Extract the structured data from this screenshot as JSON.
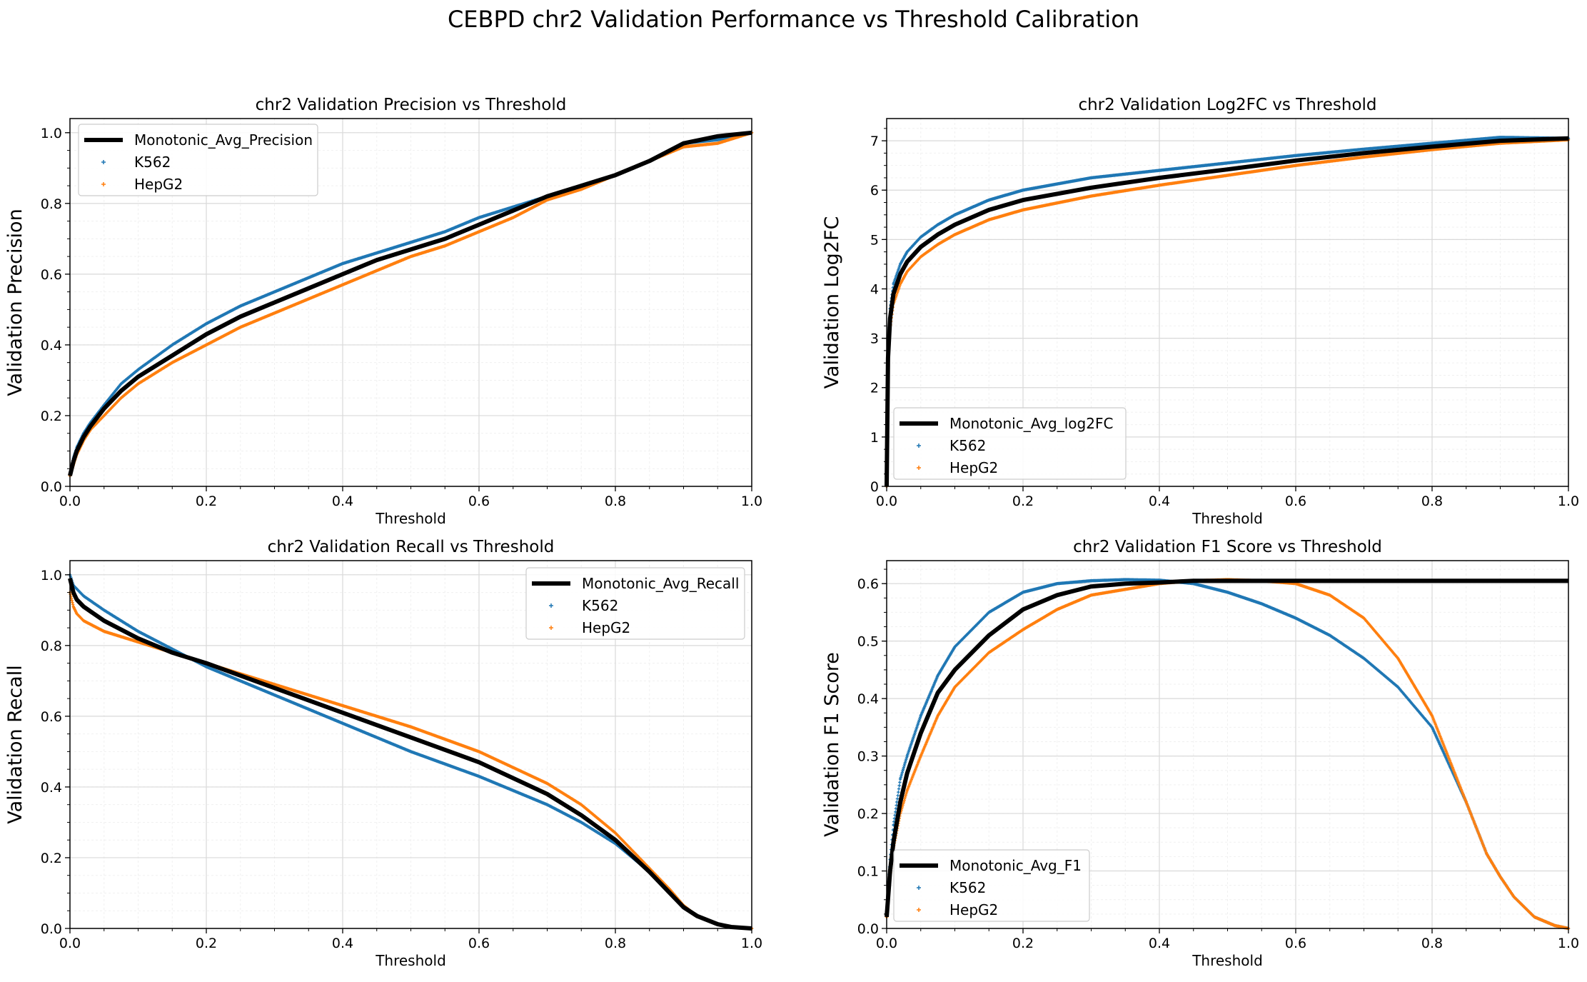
{
  "figure_title": "CEBPD chr2 Validation Performance vs Threshold Calibration",
  "colors": {
    "K562": "#1f77b4",
    "HepG2": "#ff7f0e",
    "avg": "#000000",
    "grid": "#d9d9d9"
  },
  "chart_data": [
    {
      "type": "scatter",
      "title": "chr2 Validation Precision vs Threshold",
      "xlabel": "Threshold",
      "ylabel": "Validation Precision",
      "xlim": [
        0,
        1
      ],
      "ylim": [
        0,
        1.04
      ],
      "xticks": [
        "0.0",
        "0.2",
        "0.4",
        "0.6",
        "0.8",
        "1.0"
      ],
      "yticks": [
        "0.0",
        "0.2",
        "0.4",
        "0.6",
        "0.8",
        "1.0"
      ],
      "ytick_values": [
        0,
        0.2,
        0.4,
        0.6,
        0.8,
        1.0
      ],
      "legend_position": "upper-left",
      "legend": [
        "Monotonic_Avg_Precision",
        "K562",
        "HepG2"
      ],
      "x": [
        0,
        0.005,
        0.01,
        0.02,
        0.03,
        0.05,
        0.075,
        0.1,
        0.15,
        0.2,
        0.25,
        0.3,
        0.35,
        0.4,
        0.45,
        0.5,
        0.55,
        0.6,
        0.65,
        0.7,
        0.75,
        0.8,
        0.85,
        0.9,
        0.95,
        1.0
      ],
      "series": [
        {
          "name": "Monotonic_Avg_Precision",
          "kind": "line",
          "values": [
            0.03,
            0.07,
            0.1,
            0.14,
            0.17,
            0.22,
            0.27,
            0.31,
            0.37,
            0.43,
            0.48,
            0.52,
            0.56,
            0.6,
            0.64,
            0.67,
            0.7,
            0.74,
            0.78,
            0.82,
            0.85,
            0.88,
            0.92,
            0.97,
            0.99,
            1.0
          ]
        },
        {
          "name": "K562",
          "kind": "scatter",
          "values": [
            0.03,
            0.08,
            0.11,
            0.15,
            0.18,
            0.23,
            0.29,
            0.33,
            0.4,
            0.46,
            0.51,
            0.55,
            0.59,
            0.63,
            0.66,
            0.69,
            0.72,
            0.76,
            0.79,
            0.82,
            0.85,
            0.88,
            0.92,
            0.97,
            0.98,
            1.0
          ]
        },
        {
          "name": "HepG2",
          "kind": "scatter",
          "values": [
            0.03,
            0.06,
            0.09,
            0.13,
            0.16,
            0.2,
            0.25,
            0.29,
            0.35,
            0.4,
            0.45,
            0.49,
            0.53,
            0.57,
            0.61,
            0.65,
            0.68,
            0.72,
            0.76,
            0.81,
            0.84,
            0.88,
            0.92,
            0.96,
            0.97,
            1.0
          ]
        }
      ]
    },
    {
      "type": "scatter",
      "title": "chr2 Validation Log2FC vs Threshold",
      "xlabel": "Threshold",
      "ylabel": "Validation Log2FC",
      "xlim": [
        0,
        1
      ],
      "ylim": [
        0,
        7.45
      ],
      "xticks": [
        "0.0",
        "0.2",
        "0.4",
        "0.6",
        "0.8",
        "1.0"
      ],
      "yticks": [
        "0",
        "1",
        "2",
        "3",
        "4",
        "5",
        "6",
        "7"
      ],
      "ytick_values": [
        0,
        1,
        2,
        3,
        4,
        5,
        6,
        7
      ],
      "legend_position": "lower-left",
      "legend": [
        "Monotonic_Avg_log2FC",
        "K562",
        "HepG2"
      ],
      "x": [
        0,
        0.002,
        0.005,
        0.01,
        0.02,
        0.03,
        0.05,
        0.075,
        0.1,
        0.15,
        0.2,
        0.3,
        0.4,
        0.5,
        0.6,
        0.7,
        0.8,
        0.9,
        1.0
      ],
      "series": [
        {
          "name": "Monotonic_Avg_log2FC",
          "kind": "line",
          "values": [
            0,
            2.6,
            3.4,
            3.9,
            4.3,
            4.55,
            4.85,
            5.1,
            5.3,
            5.6,
            5.8,
            6.05,
            6.25,
            6.42,
            6.6,
            6.75,
            6.88,
            7.0,
            7.05
          ]
        },
        {
          "name": "K562",
          "kind": "scatter",
          "values": [
            0,
            2.8,
            3.6,
            4.1,
            4.5,
            4.75,
            5.05,
            5.3,
            5.5,
            5.8,
            6.0,
            6.25,
            6.4,
            6.55,
            6.7,
            6.83,
            6.95,
            7.07,
            7.05
          ]
        },
        {
          "name": "HepG2",
          "kind": "scatter",
          "values": [
            0,
            2.5,
            3.2,
            3.7,
            4.1,
            4.35,
            4.65,
            4.9,
            5.1,
            5.4,
            5.6,
            5.88,
            6.1,
            6.3,
            6.5,
            6.67,
            6.82,
            6.95,
            7.02
          ]
        }
      ]
    },
    {
      "type": "scatter",
      "title": "chr2 Validation Recall vs Threshold",
      "xlabel": "",
      "ylabel": "Validation Recall",
      "xlim": [
        0,
        1
      ],
      "ylim": [
        0,
        1.04
      ],
      "xticks": [
        "0.0",
        "0.2",
        "0.4",
        "0.6",
        "0.8",
        "1.0"
      ],
      "yticks": [
        "0.0",
        "0.2",
        "0.4",
        "0.6",
        "0.8",
        "1.0"
      ],
      "ytick_values": [
        0,
        0.2,
        0.4,
        0.6,
        0.8,
        1.0
      ],
      "legend_position": "upper-right",
      "legend": [
        "Monotonic_Avg_Recall",
        "K562",
        "HepG2"
      ],
      "x": [
        0,
        0.005,
        0.01,
        0.02,
        0.05,
        0.1,
        0.15,
        0.2,
        0.3,
        0.4,
        0.5,
        0.6,
        0.7,
        0.75,
        0.8,
        0.85,
        0.88,
        0.9,
        0.92,
        0.95,
        0.97,
        1.0
      ],
      "series": [
        {
          "name": "Monotonic_Avg_Recall",
          "kind": "line",
          "values": [
            0.99,
            0.95,
            0.93,
            0.91,
            0.87,
            0.82,
            0.78,
            0.75,
            0.68,
            0.61,
            0.54,
            0.47,
            0.38,
            0.32,
            0.25,
            0.16,
            0.1,
            0.06,
            0.035,
            0.012,
            0.004,
            0.0
          ]
        },
        {
          "name": "K562",
          "kind": "scatter",
          "values": [
            1.0,
            0.97,
            0.96,
            0.94,
            0.9,
            0.84,
            0.79,
            0.74,
            0.66,
            0.58,
            0.5,
            0.43,
            0.35,
            0.3,
            0.24,
            0.16,
            0.1,
            0.06,
            0.035,
            0.012,
            0.004,
            0.0
          ]
        },
        {
          "name": "HepG2",
          "kind": "scatter",
          "values": [
            0.95,
            0.91,
            0.89,
            0.87,
            0.84,
            0.81,
            0.78,
            0.75,
            0.69,
            0.63,
            0.57,
            0.5,
            0.41,
            0.35,
            0.27,
            0.17,
            0.11,
            0.065,
            0.035,
            0.012,
            0.004,
            0.0
          ]
        }
      ]
    },
    {
      "type": "scatter",
      "title": "chr2 Validation F1 Score vs Threshold",
      "xlabel": "Threshold",
      "ylabel": "Validation F1 Score",
      "xlim": [
        0,
        1
      ],
      "ylim": [
        0,
        0.64
      ],
      "xticks": [
        "0.0",
        "0.2",
        "0.4",
        "0.6",
        "0.8",
        "1.0"
      ],
      "yticks": [
        "0.0",
        "0.1",
        "0.2",
        "0.3",
        "0.4",
        "0.5",
        "0.6"
      ],
      "ytick_values": [
        0,
        0.1,
        0.2,
        0.3,
        0.4,
        0.5,
        0.6
      ],
      "legend_position": "lower-left",
      "legend": [
        "Monotonic_Avg_F1",
        "K562",
        "HepG2"
      ],
      "x": [
        0,
        0.005,
        0.01,
        0.02,
        0.03,
        0.05,
        0.075,
        0.1,
        0.15,
        0.2,
        0.25,
        0.3,
        0.35,
        0.4,
        0.45,
        0.5,
        0.55,
        0.6,
        0.65,
        0.7,
        0.75,
        0.8,
        0.85,
        0.88,
        0.9,
        0.92,
        0.95,
        0.98,
        1.0
      ],
      "series": [
        {
          "name": "Monotonic_Avg_F1",
          "kind": "line",
          "values": [
            0.02,
            0.1,
            0.15,
            0.22,
            0.27,
            0.34,
            0.41,
            0.45,
            0.51,
            0.555,
            0.58,
            0.595,
            0.6,
            0.602,
            0.605,
            0.605,
            0.605,
            0.605,
            0.605,
            0.605,
            0.605,
            0.605,
            0.605,
            0.605,
            0.605,
            0.605,
            0.605,
            0.605,
            0.605
          ]
        },
        {
          "name": "K562",
          "kind": "scatter",
          "values": [
            0.03,
            0.12,
            0.18,
            0.26,
            0.3,
            0.37,
            0.44,
            0.49,
            0.55,
            0.585,
            0.6,
            0.605,
            0.607,
            0.606,
            0.6,
            0.585,
            0.565,
            0.54,
            0.51,
            0.47,
            0.42,
            0.35,
            0.22,
            0.13,
            0.09,
            0.055,
            0.02,
            0.005,
            0.0
          ]
        },
        {
          "name": "HepG2",
          "kind": "scatter",
          "values": [
            0.02,
            0.09,
            0.14,
            0.2,
            0.24,
            0.3,
            0.37,
            0.42,
            0.48,
            0.52,
            0.555,
            0.58,
            0.59,
            0.6,
            0.605,
            0.607,
            0.605,
            0.6,
            0.58,
            0.54,
            0.47,
            0.37,
            0.22,
            0.13,
            0.09,
            0.055,
            0.02,
            0.005,
            0.0
          ]
        }
      ]
    }
  ]
}
